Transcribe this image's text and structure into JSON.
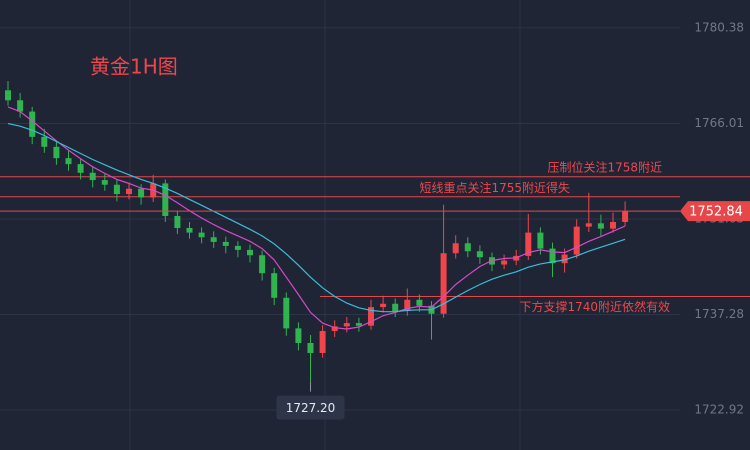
{
  "chart_data": {
    "type": "candlestick",
    "title": "黄金1H图",
    "ylim": [
      1716.91,
      1784.58
    ],
    "yticks": [
      1780.38,
      1766.01,
      1751.65,
      1737.28,
      1722.92
    ],
    "grid": true,
    "up_color": "#f0464b",
    "down_color": "#2fb44f",
    "open": [
      1771.0,
      1769.5,
      1767.8,
      1764.0,
      1762.5,
      1760.8,
      1759.9,
      1758.6,
      1757.5,
      1756.8,
      1755.4,
      1756.2,
      1754.9,
      1757.0,
      1752.1,
      1750.3,
      1749.6,
      1748.9,
      1748.2,
      1747.6,
      1747.0,
      1746.2,
      1743.5,
      1739.8,
      1735.2,
      1733.0,
      1731.5,
      1734.8,
      1735.5,
      1736.0,
      1735.6,
      1738.4,
      1738.9,
      1737.8,
      1739.5,
      1738.6,
      1737.4,
      1746.5,
      1748.0,
      1746.8,
      1745.9,
      1744.8,
      1745.4,
      1746.1,
      1749.6,
      1747.2,
      1745.0,
      1746.3,
      1750.5,
      1751.0,
      1750.2,
      1751.2
    ],
    "high": [
      1772.4,
      1770.6,
      1768.5,
      1765.2,
      1763.4,
      1761.9,
      1760.7,
      1759.5,
      1758.4,
      1757.6,
      1757.1,
      1756.9,
      1758.3,
      1757.6,
      1752.9,
      1751.2,
      1750.4,
      1749.8,
      1749.0,
      1748.3,
      1747.8,
      1746.9,
      1744.3,
      1740.6,
      1736.1,
      1734.2,
      1735.7,
      1736.4,
      1736.9,
      1736.8,
      1739.5,
      1740.1,
      1739.7,
      1741.2,
      1740.3,
      1739.3,
      1753.8,
      1749.2,
      1748.9,
      1747.7,
      1746.6,
      1746.3,
      1747.0,
      1752.4,
      1750.4,
      1748.1,
      1747.2,
      1751.6,
      1755.6,
      1752.3,
      1752.6,
      1754.3
    ],
    "low": [
      1768.7,
      1766.9,
      1762.9,
      1761.6,
      1759.8,
      1758.9,
      1757.6,
      1756.4,
      1755.9,
      1754.3,
      1754.6,
      1753.8,
      1754.2,
      1751.2,
      1749.4,
      1748.7,
      1748.0,
      1747.3,
      1746.5,
      1745.9,
      1745.1,
      1742.4,
      1738.7,
      1734.1,
      1731.9,
      1727.2,
      1730.8,
      1733.9,
      1734.6,
      1734.7,
      1735.0,
      1737.6,
      1736.9,
      1737.1,
      1737.7,
      1733.5,
      1736.8,
      1745.7,
      1745.9,
      1744.9,
      1743.8,
      1744.1,
      1744.7,
      1745.5,
      1746.3,
      1742.9,
      1743.6,
      1745.7,
      1749.7,
      1749.1,
      1749.6,
      1750.6
    ],
    "close": [
      1769.5,
      1767.8,
      1764.0,
      1762.5,
      1760.8,
      1759.9,
      1758.6,
      1757.5,
      1756.8,
      1755.4,
      1756.2,
      1754.9,
      1757.0,
      1752.1,
      1750.3,
      1749.6,
      1748.9,
      1748.2,
      1747.6,
      1747.0,
      1746.2,
      1743.5,
      1739.8,
      1735.2,
      1733.0,
      1731.5,
      1734.8,
      1735.5,
      1736.0,
      1735.6,
      1738.4,
      1738.9,
      1737.8,
      1739.5,
      1738.6,
      1737.4,
      1746.5,
      1748.0,
      1746.8,
      1745.9,
      1744.8,
      1745.4,
      1746.1,
      1749.6,
      1747.2,
      1745.0,
      1746.3,
      1750.5,
      1751.0,
      1750.2,
      1751.2,
      1752.84
    ],
    "series": [
      {
        "color": "#d64ac8",
        "values": [
          1768.5,
          1767.8,
          1766.4,
          1764.9,
          1763.4,
          1762.0,
          1760.7,
          1759.5,
          1758.5,
          1757.6,
          1757.0,
          1756.3,
          1756.0,
          1755.2,
          1754.1,
          1752.9,
          1751.8,
          1750.8,
          1749.9,
          1749.1,
          1748.3,
          1747.2,
          1745.5,
          1742.9,
          1740.3,
          1737.6,
          1736.0,
          1735.3,
          1735.1,
          1735.4,
          1736.2,
          1737.1,
          1737.6,
          1738.2,
          1738.5,
          1738.4,
          1740.0,
          1741.8,
          1743.2,
          1744.5,
          1745.4,
          1745.7,
          1745.8,
          1746.6,
          1747.0,
          1746.7,
          1746.6,
          1747.4,
          1748.3,
          1749.0,
          1749.8,
          1750.6
        ]
      },
      {
        "color": "#3cbcd8",
        "values": [
          1766.0,
          1765.6,
          1765.0,
          1764.2,
          1763.3,
          1762.4,
          1761.5,
          1760.6,
          1759.8,
          1759.0,
          1758.3,
          1757.6,
          1757.0,
          1756.3,
          1755.5,
          1754.6,
          1753.7,
          1752.8,
          1751.9,
          1751.0,
          1750.1,
          1749.1,
          1747.9,
          1746.4,
          1744.7,
          1742.9,
          1741.3,
          1740.0,
          1739.0,
          1738.3,
          1737.9,
          1737.7,
          1737.7,
          1737.9,
          1738.0,
          1738.0,
          1738.9,
          1739.9,
          1740.9,
          1741.8,
          1742.6,
          1743.2,
          1743.7,
          1744.4,
          1744.9,
          1745.2,
          1745.5,
          1746.1,
          1746.8,
          1747.4,
          1748.0,
          1748.6
        ]
      }
    ],
    "levels": [
      {
        "value": 1758,
        "label": "压制位关注1758附近"
      },
      {
        "value": 1755,
        "label": "短线重点关注1755附近得失"
      },
      {
        "value": 1740,
        "label": "下方支撑1740附近依然有效"
      }
    ],
    "last_price": 1752.84,
    "low_marker": {
      "value": 1727.2,
      "label": "1727.20"
    }
  }
}
